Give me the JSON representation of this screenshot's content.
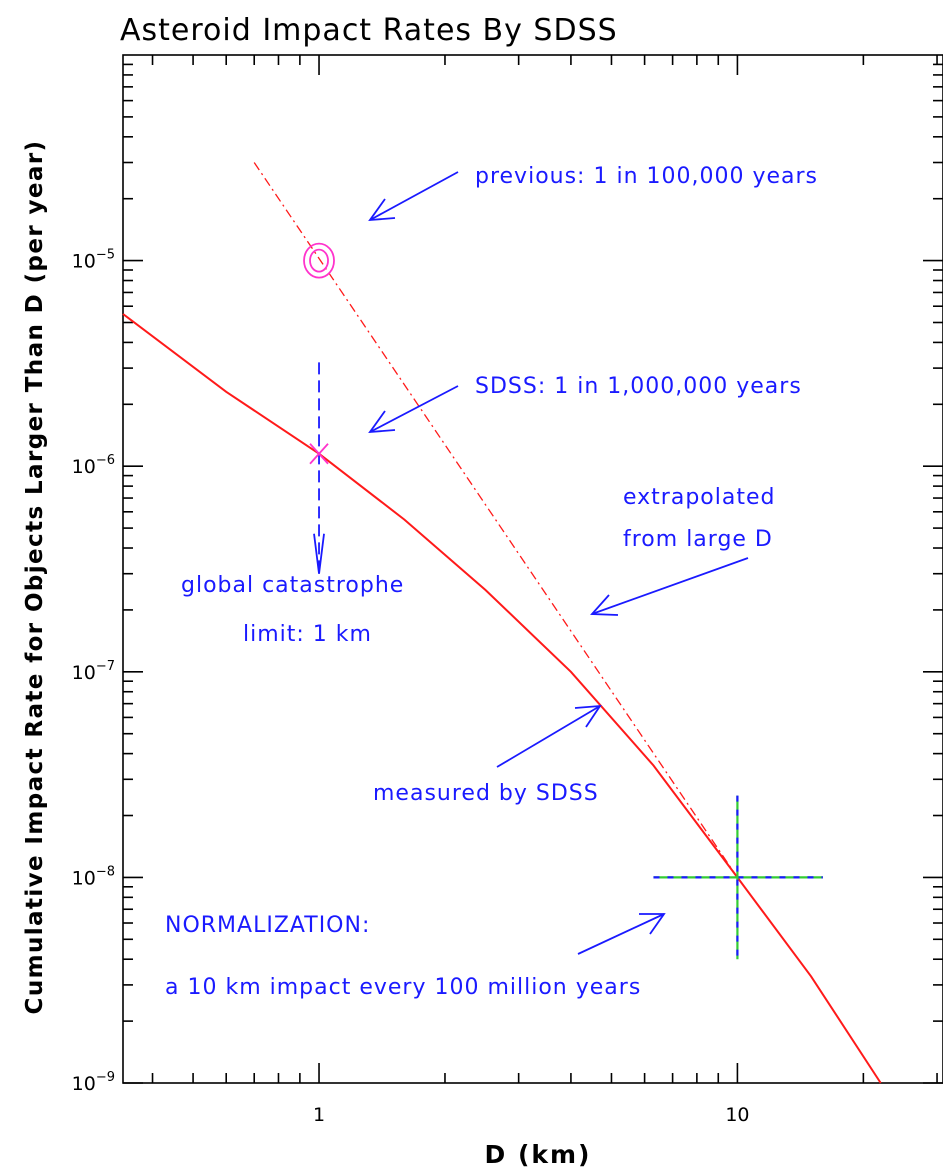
{
  "chart_data": {
    "type": "line",
    "title": "Asteroid Impact Rates By SDSS",
    "xlabel": "D (km)",
    "ylabel": "Cumulative Impact Rate for Objects Larger Than D (per year)",
    "x_scale": "log",
    "y_scale": "log",
    "xlim": [
      0.34,
      31
    ],
    "ylim": [
      1e-09,
      0.0001
    ],
    "x_tick_labels": [
      {
        "value": 1,
        "label": "1"
      },
      {
        "value": 10,
        "label": "10"
      }
    ],
    "y_tick_labels": [
      {
        "value": 1e-09,
        "base": "10",
        "exp": "−9"
      },
      {
        "value": 1e-08,
        "base": "10",
        "exp": "−8"
      },
      {
        "value": 1e-07,
        "base": "10",
        "exp": "−7"
      },
      {
        "value": 1e-06,
        "base": "10",
        "exp": "−6"
      },
      {
        "value": 1e-05,
        "base": "10",
        "exp": "−5"
      }
    ],
    "series": [
      {
        "style": "solid",
        "color": "#ff1a1a",
        "x": [
          0.34,
          0.6,
          1.0,
          1.6,
          2.5,
          4.0,
          6.3,
          10,
          15,
          22
        ],
        "y": [
          5.5e-06,
          2.3e-06,
          1.15e-06,
          5.5e-07,
          2.5e-07,
          1e-07,
          3.5e-08,
          1e-08,
          3.3e-09,
          1e-09
        ]
      },
      {
        "style": "dash-dot",
        "color": "#ff1a1a",
        "x": [
          0.7,
          10
        ],
        "y": [
          3e-05,
          1e-08
        ]
      }
    ],
    "markers": [
      {
        "kind": "double-circle",
        "x": 1.0,
        "y": 1e-05,
        "color": "#ff33cc"
      },
      {
        "kind": "x",
        "x": 1.0,
        "y": 1.15e-06,
        "color": "#ff33cc"
      }
    ],
    "normalization_cross": {
      "x": 10,
      "y": 1e-08,
      "x_range": [
        6.3,
        16
      ],
      "y_range": [
        4e-09,
        2.5e-08
      ],
      "colors": [
        "#33cc33",
        "#1a1aff"
      ]
    },
    "limit_line": {
      "x": 1.0,
      "y_from": 3.2e-06,
      "y_to": 3e-07,
      "color": "#1a1aff"
    },
    "annotations": [
      {
        "text": "previous: 1 in 100,000 years"
      },
      {
        "text": "SDSS: 1 in 1,000,000 years"
      },
      {
        "text": "extrapolated"
      },
      {
        "text": "from large D"
      },
      {
        "text": "global catastrophe"
      },
      {
        "text": "limit: 1 km"
      },
      {
        "text": "measured by SDSS"
      },
      {
        "text": "NORMALIZATION:"
      },
      {
        "text": "a 10 km impact every 100 million years"
      }
    ],
    "annotation_color": "#1a1aff",
    "grid": false,
    "legend": "none"
  }
}
